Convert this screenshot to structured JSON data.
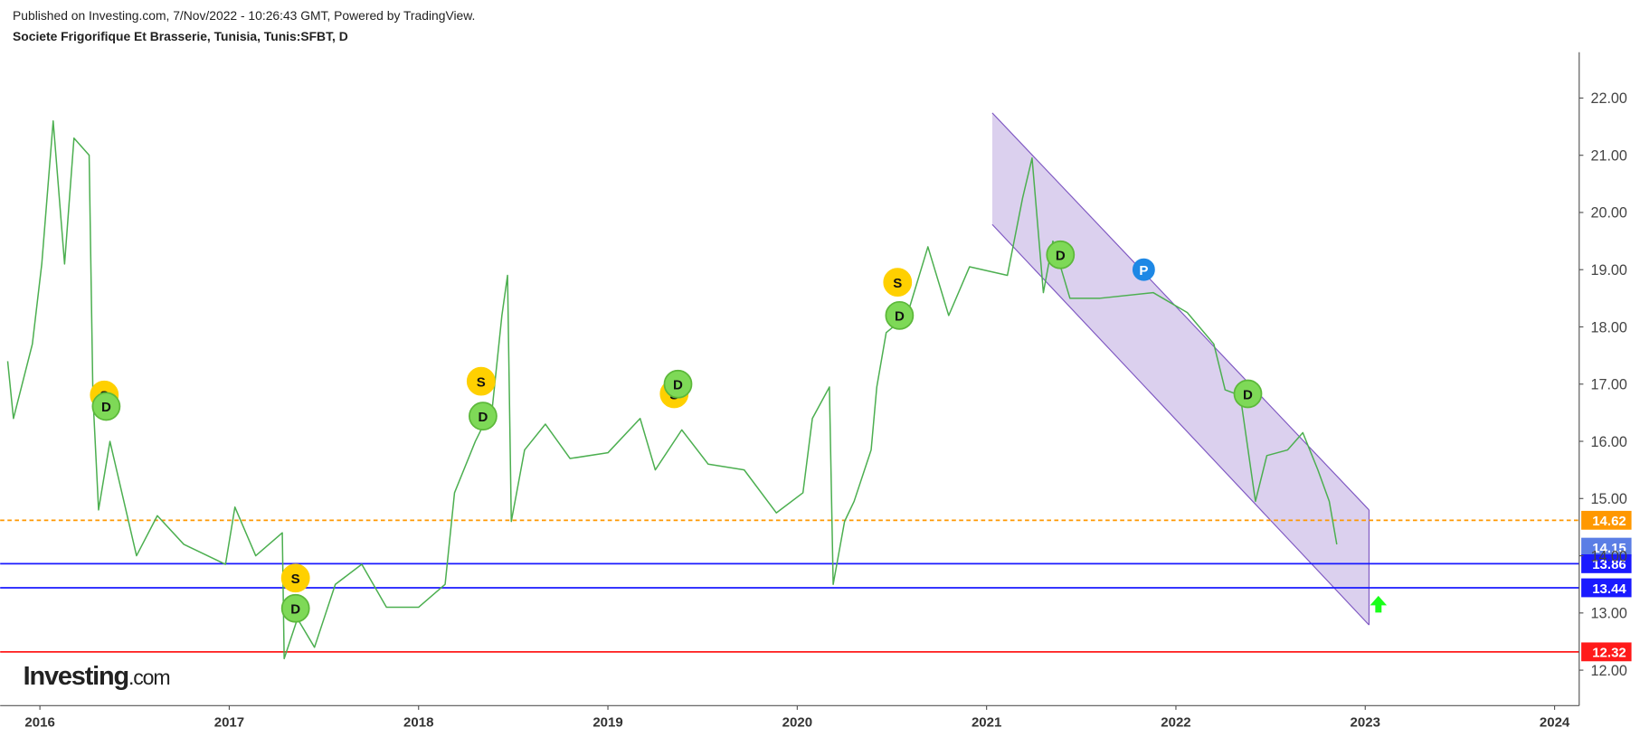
{
  "header": {
    "published": "Published on Investing.com, 7/Nov/2022 - 10:26:43 GMT, Powered by TradingView.",
    "instrument": "Societe Frigorifique Et Brasserie, Tunisia, Tunis:SFBT, D"
  },
  "logo": {
    "brand": "Investing",
    "suffix": ".com"
  },
  "chart_data": {
    "type": "line",
    "color": "#4caf50",
    "x": [
      2015.83,
      2015.86,
      2015.96,
      2016.01,
      2016.07,
      2016.13,
      2016.18,
      2016.26,
      2016.28,
      2016.31,
      2016.37,
      2016.51,
      2016.62,
      2016.76,
      2016.98,
      2017.03,
      2017.14,
      2017.28,
      2017.29,
      2017.36,
      2017.45,
      2017.56,
      2017.7,
      2017.83,
      2018.0,
      2018.14,
      2018.19,
      2018.3,
      2018.39,
      2018.44,
      2018.47,
      2018.49,
      2018.56,
      2018.67,
      2018.8,
      2019.0,
      2019.17,
      2019.25,
      2019.39,
      2019.53,
      2019.72,
      2019.89,
      2020.03,
      2020.08,
      2020.17,
      2020.19,
      2020.25,
      2020.3,
      2020.39,
      2020.42,
      2020.47,
      2020.58,
      2020.69,
      2020.8,
      2020.91,
      2021.11,
      2021.19,
      2021.24,
      2021.3,
      2021.35,
      2021.44,
      2021.6,
      2021.88,
      2022.06,
      2022.2,
      2022.26,
      2022.34,
      2022.42,
      2022.48,
      2022.59,
      2022.67,
      2022.75,
      2022.81,
      2022.85
    ],
    "values": [
      17.4,
      16.4,
      17.7,
      19.1,
      21.6,
      19.1,
      21.3,
      21.0,
      16.8,
      14.8,
      16.0,
      14.0,
      14.7,
      14.2,
      13.85,
      14.85,
      14.0,
      14.4,
      12.2,
      12.9,
      12.4,
      13.5,
      13.85,
      13.1,
      13.1,
      13.5,
      15.1,
      16.0,
      16.6,
      18.2,
      18.9,
      14.6,
      15.85,
      16.3,
      15.7,
      15.8,
      16.4,
      15.5,
      16.2,
      15.6,
      15.5,
      14.75,
      15.1,
      16.4,
      16.95,
      13.5,
      14.6,
      14.95,
      15.85,
      16.95,
      17.9,
      18.2,
      19.4,
      18.2,
      19.05,
      18.9,
      20.25,
      20.95,
      18.6,
      19.5,
      18.5,
      18.5,
      18.6,
      18.25,
      17.7,
      16.9,
      16.8,
      14.95,
      15.75,
      15.85,
      16.15,
      15.5,
      14.95,
      14.2
    ],
    "xlim": [
      2015.79,
      2024.13
    ],
    "xticks": [
      2016,
      2017,
      2018,
      2019,
      2020,
      2021,
      2022,
      2023,
      2024
    ],
    "ylim": [
      11.38,
      22.8
    ],
    "yticks": [
      {
        "value": 12,
        "label": "12.00"
      },
      {
        "value": 13,
        "label": "13.00"
      },
      {
        "value": 14,
        "label": "14.00"
      },
      {
        "value": 15,
        "label": "15.00"
      },
      {
        "value": 16,
        "label": "16.00"
      },
      {
        "value": 17,
        "label": "17.00"
      },
      {
        "value": 18,
        "label": "18.00"
      },
      {
        "value": 19,
        "label": "19.00"
      },
      {
        "value": 20,
        "label": "20.00"
      },
      {
        "value": 21,
        "label": "21.00"
      },
      {
        "value": 22,
        "label": "22.00"
      }
    ],
    "levels": [
      {
        "value": 14.62,
        "color": "#ff9800",
        "line": "dashed"
      },
      {
        "value": 14.15,
        "color": "#5b7ee5",
        "line": "none"
      },
      {
        "value": 13.86,
        "color": "#1a1aff",
        "line": "solid"
      },
      {
        "value": 13.44,
        "color": "#1a1aff",
        "line": "solid"
      },
      {
        "value": 12.32,
        "color": "#ff1a1a",
        "line": "solid"
      }
    ],
    "channel": {
      "x": [
        2021.03,
        2023.02
      ],
      "upper": [
        21.74,
        14.8
      ],
      "lower": [
        19.79,
        12.79
      ],
      "color": "#7e57c2"
    },
    "markers": [
      {
        "label": "S",
        "x": 2016.34,
        "y": 16.81,
        "color": "#ffd000"
      },
      {
        "label": "D",
        "x": 2016.35,
        "y": 16.61,
        "color": "#7ed957"
      },
      {
        "label": "S",
        "x": 2017.35,
        "y": 13.61,
        "color": "#ffd000"
      },
      {
        "label": "D",
        "x": 2017.35,
        "y": 13.08,
        "color": "#7ed957"
      },
      {
        "label": "S",
        "x": 2018.33,
        "y": 17.05,
        "color": "#ffd000"
      },
      {
        "label": "D",
        "x": 2018.34,
        "y": 16.44,
        "color": "#7ed957"
      },
      {
        "label": "S",
        "x": 2019.35,
        "y": 16.83,
        "color": "#ffd000"
      },
      {
        "label": "D",
        "x": 2019.37,
        "y": 17.0,
        "color": "#7ed957"
      },
      {
        "label": "S",
        "x": 2020.53,
        "y": 18.78,
        "color": "#ffd000"
      },
      {
        "label": "D",
        "x": 2020.54,
        "y": 18.2,
        "color": "#7ed957"
      },
      {
        "label": "D",
        "x": 2021.39,
        "y": 19.26,
        "color": "#7ed957"
      },
      {
        "label": "P",
        "x": 2021.83,
        "y": 19.0,
        "color": "#1e88e5"
      },
      {
        "label": "D",
        "x": 2022.38,
        "y": 16.83,
        "color": "#7ed957"
      }
    ]
  }
}
